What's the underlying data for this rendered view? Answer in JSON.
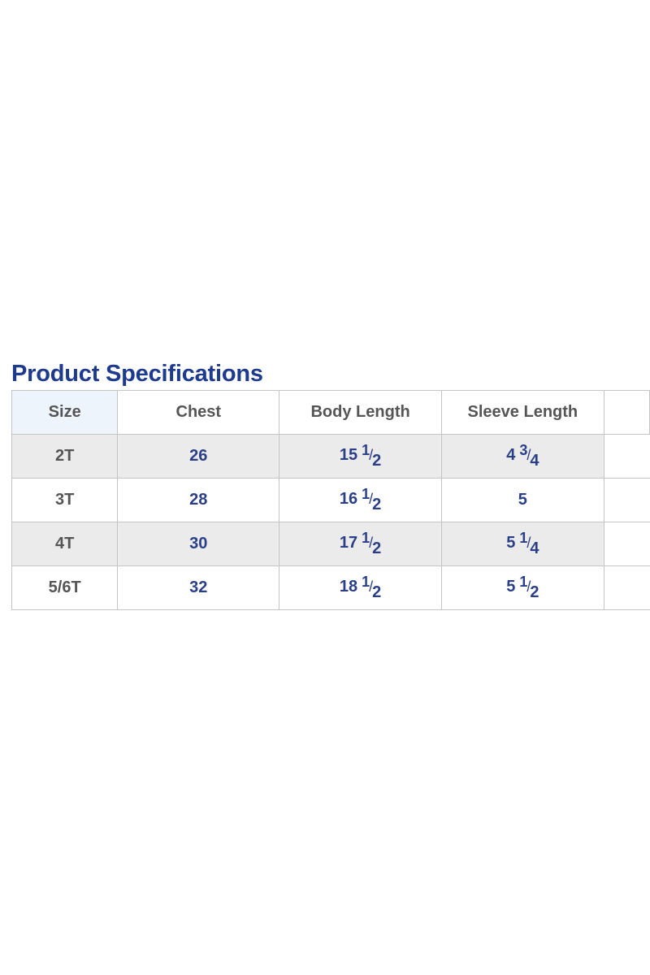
{
  "title": "Product Specifications",
  "columns": [
    "Size",
    "Chest",
    "Body Length",
    "Sleeve Length",
    ""
  ],
  "rows": [
    {
      "size": "2T",
      "chest": "26",
      "body": {
        "whole": "15",
        "num": "1",
        "den": "2"
      },
      "sleeve": {
        "whole": "4",
        "num": "3",
        "den": "4"
      }
    },
    {
      "size": "3T",
      "chest": "28",
      "body": {
        "whole": "16",
        "num": "1",
        "den": "2"
      },
      "sleeve": {
        "whole": "5",
        "num": "",
        "den": ""
      }
    },
    {
      "size": "4T",
      "chest": "30",
      "body": {
        "whole": "17",
        "num": "1",
        "den": "2"
      },
      "sleeve": {
        "whole": "5",
        "num": "1",
        "den": "4"
      }
    },
    {
      "size": "5/6T",
      "chest": "32",
      "body": {
        "whole": "18",
        "num": "1",
        "den": "2"
      },
      "sleeve": {
        "whole": "5",
        "num": "1",
        "den": "2"
      }
    }
  ],
  "colors": {
    "title": "#1d3a8f",
    "value": "#2b3f86",
    "header_text": "#555555",
    "alt_row": "#ebebeb",
    "size_header_bg": "#eef4fc"
  }
}
